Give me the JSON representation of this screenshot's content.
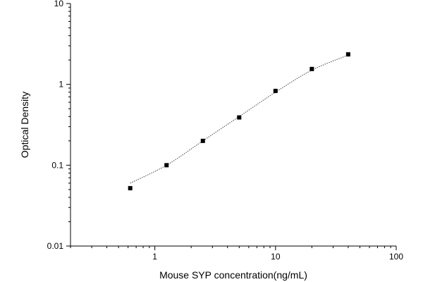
{
  "chart_data": {
    "type": "scatter",
    "title": "",
    "xlabel": "Mouse SYP concentration(ng/mL)",
    "ylabel": "Optical Density",
    "xscale": "log",
    "yscale": "log",
    "xlim": [
      0.2,
      100
    ],
    "ylim": [
      0.01,
      10
    ],
    "x_ticks": [
      1,
      10,
      100
    ],
    "x_tick_labels": [
      "1",
      "10",
      "100"
    ],
    "y_ticks": [
      0.01,
      0.1,
      1,
      10
    ],
    "y_tick_labels": [
      "0.01",
      "0.1",
      "1",
      "10"
    ],
    "grid": false,
    "legend": "none",
    "marker": "square",
    "marker_color": "#000000",
    "fit_line": "dotted",
    "points": [
      {
        "x": 0.625,
        "y": 0.052
      },
      {
        "x": 1.25,
        "y": 0.1
      },
      {
        "x": 2.5,
        "y": 0.2
      },
      {
        "x": 5,
        "y": 0.39
      },
      {
        "x": 10,
        "y": 0.83
      },
      {
        "x": 20,
        "y": 1.55
      },
      {
        "x": 40,
        "y": 2.35
      }
    ],
    "curve": [
      {
        "x": 0.625,
        "y": 0.06
      },
      {
        "x": 1.25,
        "y": 0.1
      },
      {
        "x": 2.5,
        "y": 0.2
      },
      {
        "x": 5,
        "y": 0.4
      },
      {
        "x": 10,
        "y": 0.8
      },
      {
        "x": 20,
        "y": 1.5
      },
      {
        "x": 40,
        "y": 2.3
      }
    ]
  }
}
